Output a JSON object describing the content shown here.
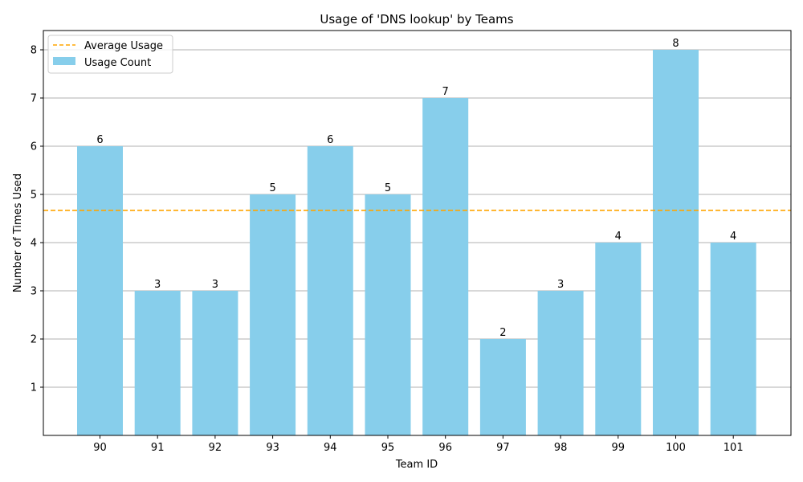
{
  "chart_data": {
    "type": "bar",
    "title": "Usage of 'DNS lookup' by Teams",
    "xlabel": "Team ID",
    "ylabel": "Number of Times Used",
    "categories": [
      "90",
      "91",
      "92",
      "93",
      "94",
      "95",
      "96",
      "97",
      "98",
      "99",
      "100",
      "101"
    ],
    "series": [
      {
        "name": "Usage Count",
        "values": [
          6,
          3,
          3,
          5,
          6,
          5,
          7,
          2,
          3,
          4,
          8,
          4
        ],
        "color": "#87ceeb"
      }
    ],
    "average": {
      "name": "Average Usage",
      "value": 4.67,
      "color": "#ffa500"
    },
    "ylim": [
      0,
      8.4
    ],
    "yticks": [
      1,
      2,
      3,
      4,
      5,
      6,
      7,
      8
    ],
    "grid": "y",
    "legend_position": "top-left"
  }
}
